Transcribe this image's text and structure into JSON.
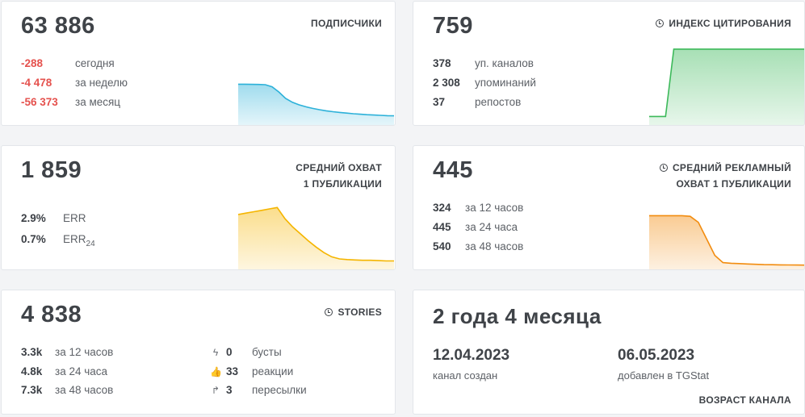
{
  "subscribers": {
    "title": "ПОДПИСЧИКИ",
    "value": "63 886",
    "rows": [
      {
        "value": "-288",
        "label": "сегодня"
      },
      {
        "value": "-4 478",
        "label": "за неделю"
      },
      {
        "value": "-56 373",
        "label": "за месяц"
      }
    ],
    "color": "#2cb1d9",
    "trend": [
      62,
      62,
      61.8,
      61.6,
      61.2,
      58,
      50,
      40,
      34,
      30,
      27,
      24.5,
      22.5,
      20.8,
      19.4,
      18.2,
      17.2,
      16.3,
      15.5,
      14.8,
      14.2,
      13.7,
      13.3,
      13.0
    ]
  },
  "citation": {
    "title": "ИНДЕКС ЦИТИРОВАНИЯ",
    "value": "759",
    "rows": [
      {
        "value": "378",
        "label": "уп. каналов"
      },
      {
        "value": "2 308",
        "label": "упоминаний"
      },
      {
        "value": "37",
        "label": "репостов"
      }
    ],
    "color": "#3cb95a",
    "trend": [
      10,
      10,
      10,
      97,
      97,
      97,
      97,
      97,
      97,
      97,
      97,
      97,
      97,
      97,
      97,
      97,
      97,
      97,
      97,
      97
    ]
  },
  "reach": {
    "title_line1": "СРЕДНИЙ ОХВАТ",
    "title_line2": "1 ПУБЛИКАЦИИ",
    "value": "1 859",
    "rows": [
      {
        "value": "2.9%",
        "label": "ERR"
      },
      {
        "value": "0.7%",
        "label": "ERR",
        "sub": "24"
      }
    ],
    "color": "#f5b500",
    "trend": [
      78,
      80,
      82,
      84,
      86,
      88,
      72,
      60,
      50,
      40,
      31,
      23,
      17,
      14,
      13,
      12.5,
      12,
      12,
      11.5,
      11,
      11
    ]
  },
  "ad_reach": {
    "title_line1": "СРЕДНИЙ РЕКЛАМНЫЙ",
    "title_line2": "ОХВАТ 1 ПУБЛИКАЦИИ",
    "value": "445",
    "rows": [
      {
        "value": "324",
        "label": "за 12 часов"
      },
      {
        "value": "445",
        "label": "за 24 часа"
      },
      {
        "value": "540",
        "label": "за 48 часов"
      }
    ],
    "color": "#f28c0f",
    "trend": [
      80,
      80,
      80,
      80,
      80,
      79,
      70,
      45,
      20,
      9,
      8,
      7.5,
      7,
      6.5,
      6,
      5.8,
      5.6,
      5.5,
      5.4,
      5.3
    ]
  },
  "stories": {
    "title": "STORIES",
    "value": "4 838",
    "rows": [
      {
        "value": "3.3k",
        "label": "за 12 часов"
      },
      {
        "value": "4.8k",
        "label": "за 24 часа"
      },
      {
        "value": "7.3k",
        "label": "за 48 часов"
      }
    ],
    "side": [
      {
        "icon": "lightning-icon",
        "glyph": "ϟ",
        "value": "0",
        "label": "бусты"
      },
      {
        "icon": "thumbs-up-icon",
        "glyph": "👍",
        "value": "33",
        "label": "реакции"
      },
      {
        "icon": "share-arrow-icon",
        "glyph": "↱",
        "value": "3",
        "label": "пересылки"
      }
    ]
  },
  "age": {
    "value": "2 года 4 месяца",
    "created_date": "12.04.2023",
    "created_label": "канал создан",
    "added_date": "06.05.2023",
    "added_label": "добавлен в TGStat",
    "title": "ВОЗРАСТ КАНАЛА"
  }
}
